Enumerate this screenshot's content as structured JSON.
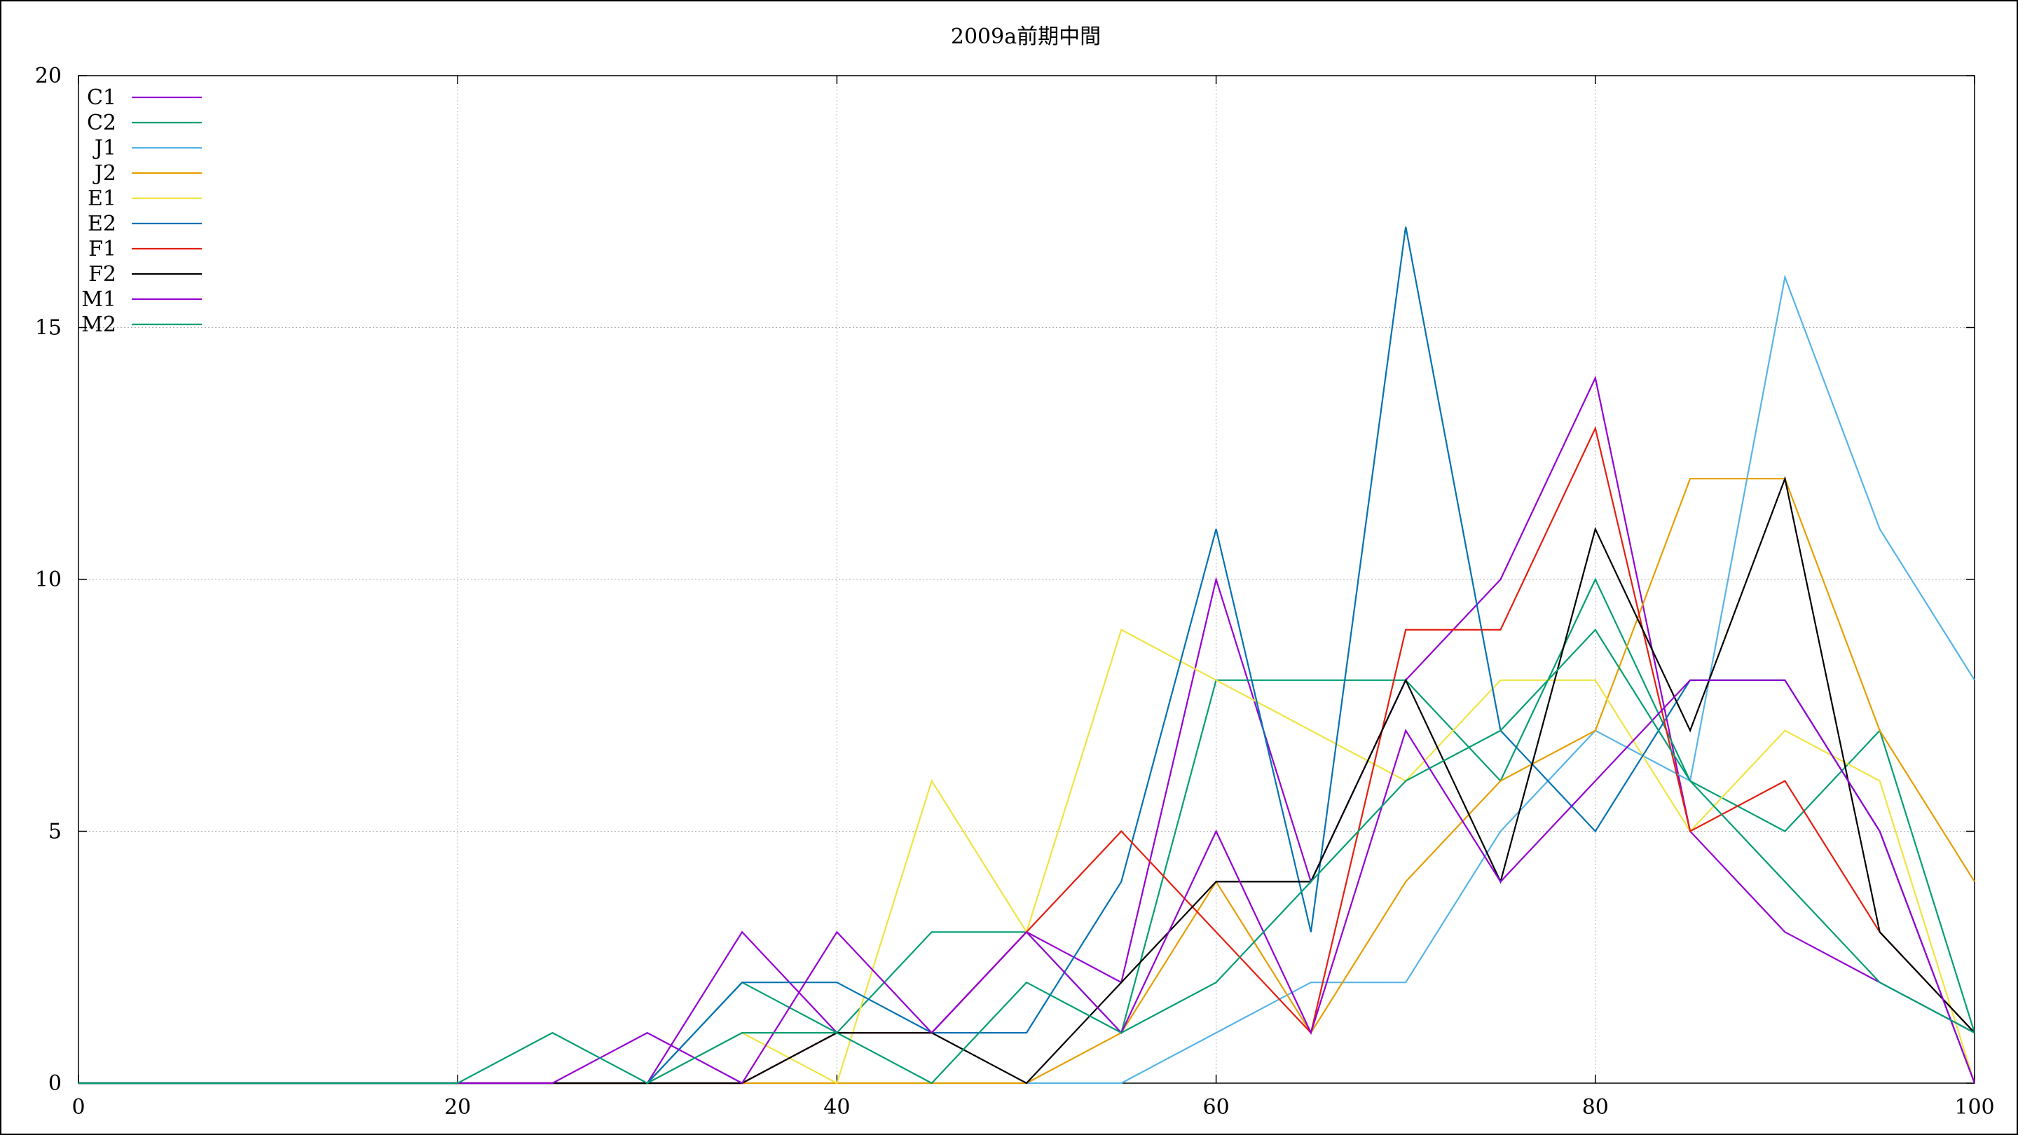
{
  "chart_data": {
    "type": "line",
    "title": "2009a前期中間",
    "xlabel": "",
    "ylabel": "",
    "xlim": [
      0,
      100
    ],
    "ylim": [
      0,
      20
    ],
    "x_ticks": [
      "0",
      "20",
      "40",
      "60",
      "80",
      "100"
    ],
    "y_ticks": [
      "0",
      "5",
      "10",
      "15",
      "20"
    ],
    "grid": true,
    "legend_position": "top-left",
    "x": [
      0,
      5,
      10,
      15,
      20,
      25,
      30,
      35,
      40,
      45,
      50,
      55,
      60,
      65,
      70,
      75,
      80,
      85,
      90,
      95,
      100
    ],
    "series": [
      {
        "name": "C1",
        "color": "#9400d3",
        "values": [
          0,
          0,
          0,
          0,
          0,
          0,
          0,
          3,
          1,
          1,
          3,
          2,
          10,
          4,
          8,
          10,
          14,
          5,
          3,
          2,
          1
        ]
      },
      {
        "name": "C2",
        "color": "#009e73",
        "values": [
          0,
          0,
          0,
          0,
          0,
          0,
          0,
          2,
          1,
          3,
          3,
          1,
          8,
          8,
          8,
          6,
          10,
          6,
          5,
          7,
          1
        ]
      },
      {
        "name": "J1",
        "color": "#56b4e9",
        "values": [
          0,
          0,
          0,
          0,
          0,
          0,
          0,
          0,
          0,
          0,
          0,
          0,
          1,
          2,
          2,
          5,
          7,
          6,
          16,
          11,
          8
        ]
      },
      {
        "name": "J2",
        "color": "#e69f00",
        "values": [
          0,
          0,
          0,
          0,
          0,
          0,
          0,
          0,
          0,
          0,
          0,
          1,
          4,
          1,
          4,
          6,
          7,
          12,
          12,
          7,
          4
        ]
      },
      {
        "name": "E1",
        "color": "#f0e442",
        "values": [
          0,
          0,
          0,
          0,
          0,
          0,
          0,
          1,
          0,
          6,
          3,
          9,
          8,
          7,
          6,
          8,
          8,
          5,
          7,
          6,
          0
        ]
      },
      {
        "name": "E2",
        "color": "#0072b2",
        "values": [
          0,
          0,
          0,
          0,
          0,
          0,
          0,
          2,
          2,
          1,
          1,
          4,
          11,
          3,
          17,
          7,
          5,
          8,
          8,
          5,
          0
        ]
      },
      {
        "name": "F1",
        "color": "#e51e10",
        "values": [
          0,
          0,
          0,
          0,
          0,
          0,
          0,
          0,
          1,
          1,
          3,
          5,
          3,
          1,
          9,
          9,
          13,
          5,
          6,
          3,
          1
        ]
      },
      {
        "name": "F2",
        "color": "#000000",
        "values": [
          0,
          0,
          0,
          0,
          0,
          0,
          0,
          0,
          1,
          1,
          0,
          2,
          4,
          4,
          8,
          4,
          11,
          7,
          12,
          3,
          1
        ]
      },
      {
        "name": "M1",
        "color": "#9400d3",
        "values": [
          0,
          0,
          0,
          0,
          0,
          0,
          1,
          0,
          3,
          1,
          3,
          1,
          5,
          1,
          7,
          4,
          6,
          8,
          8,
          5,
          0
        ]
      },
      {
        "name": "M2",
        "color": "#009e73",
        "values": [
          0,
          0,
          0,
          0,
          0,
          1,
          0,
          1,
          1,
          0,
          2,
          1,
          2,
          4,
          6,
          7,
          9,
          6,
          4,
          2,
          1
        ]
      }
    ]
  }
}
